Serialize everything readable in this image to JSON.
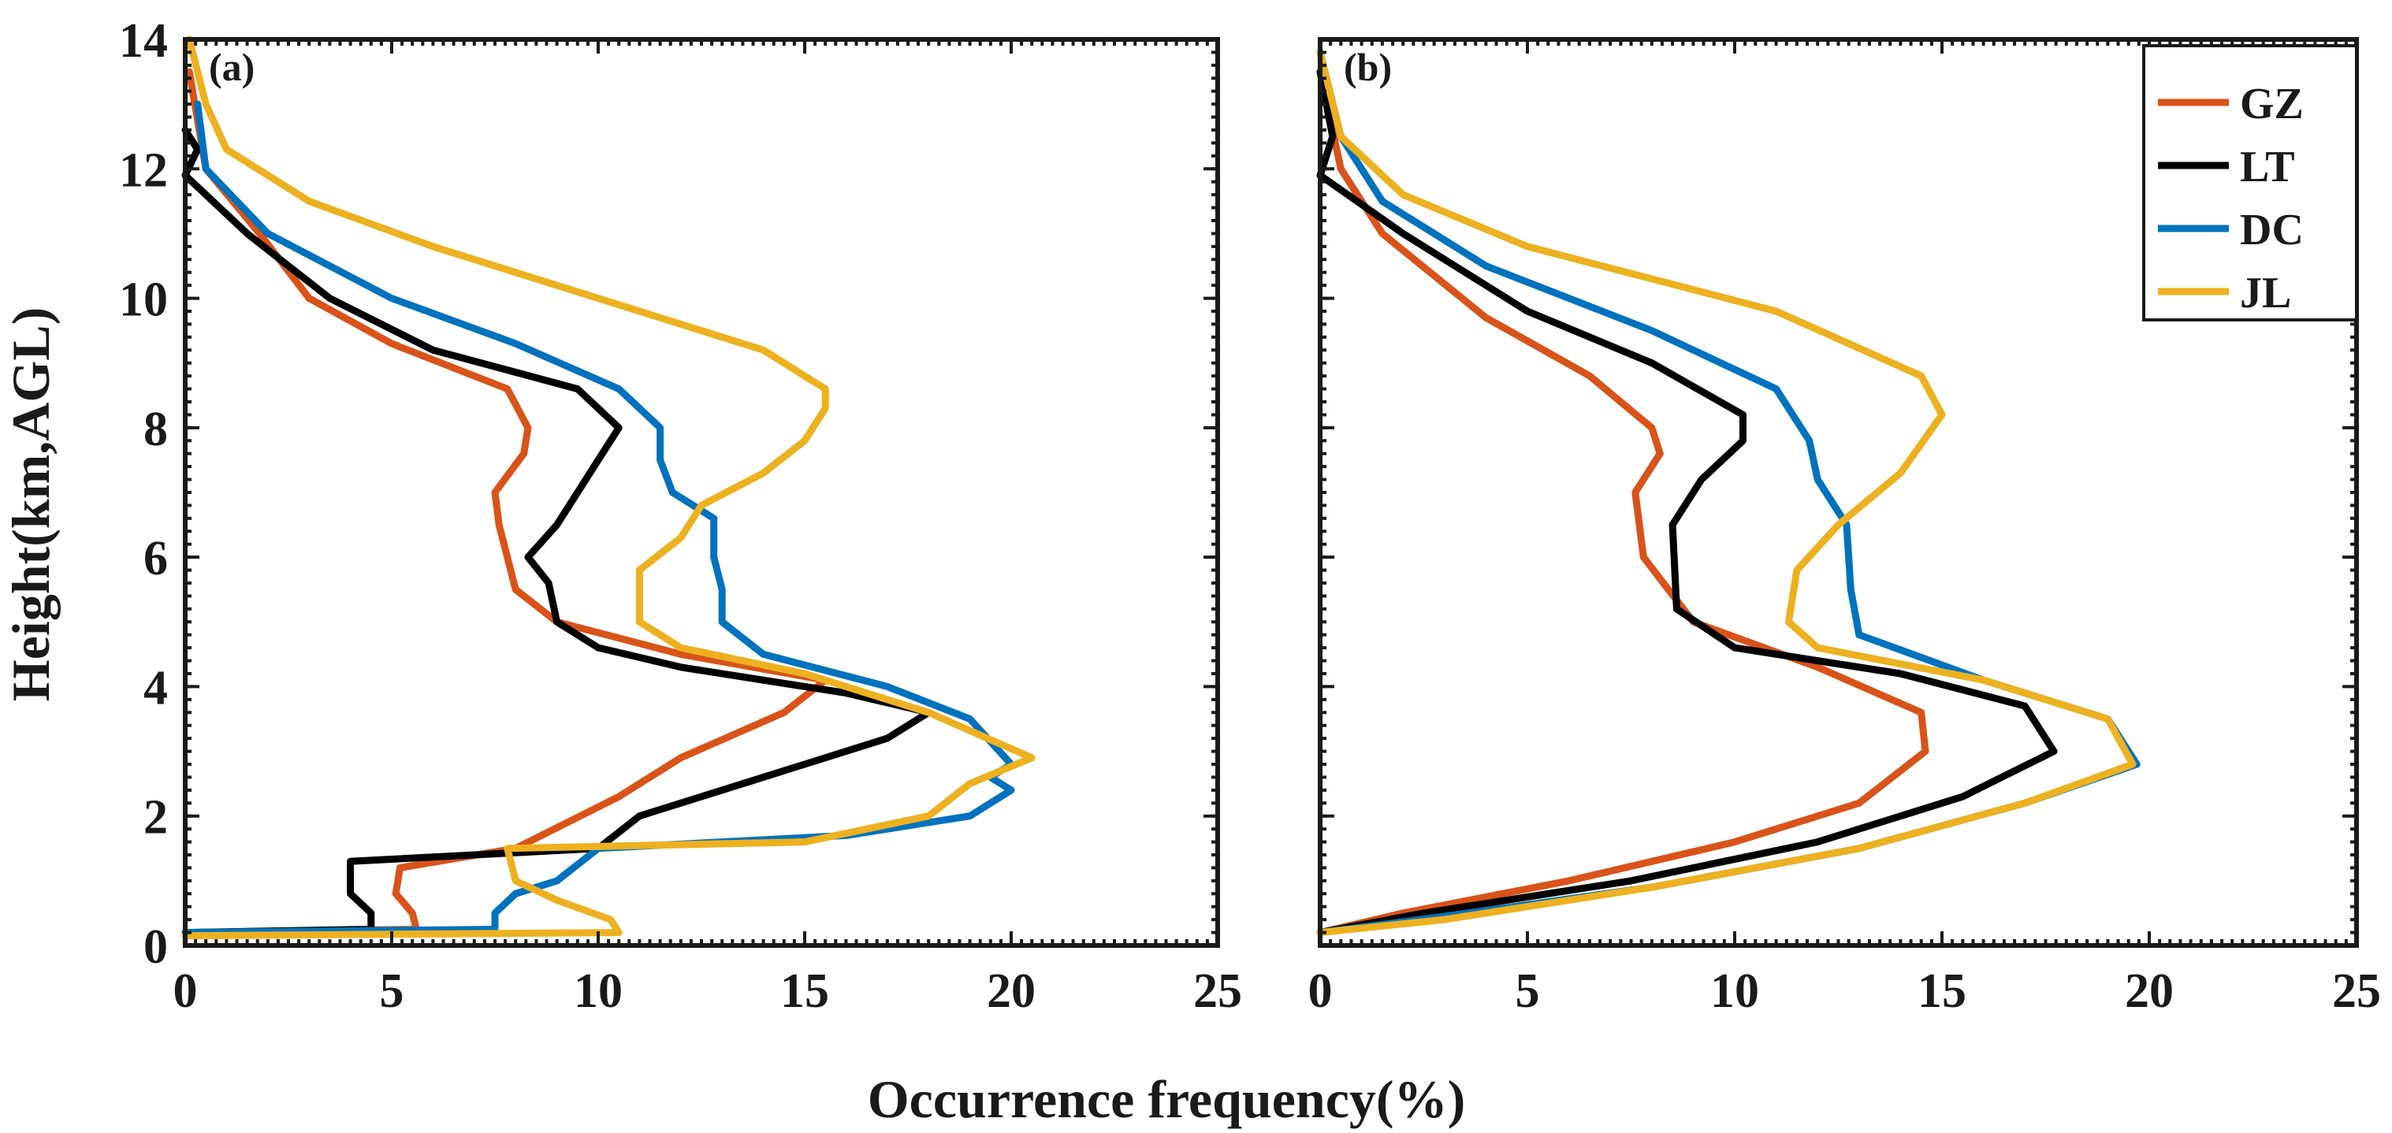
{
  "figure": {
    "xlabel": "Occurrence frequency(%)",
    "ylabel": "Height(km,AGL)"
  },
  "legend": {
    "location": "top-right of panel (b)",
    "entries": [
      {
        "name": "GZ",
        "color": "#D95319"
      },
      {
        "name": "LT",
        "color": "#000000"
      },
      {
        "name": "DC",
        "color": "#0072BD"
      },
      {
        "name": "JL",
        "color": "#EDB120"
      }
    ]
  },
  "chart_data": [
    {
      "type": "line",
      "panel_label": "(a)",
      "xlim": [
        0,
        25
      ],
      "ylim": [
        0,
        14
      ],
      "xticks": [
        0,
        5,
        10,
        15,
        20,
        25
      ],
      "yticks": [
        0,
        2,
        4,
        6,
        8,
        10,
        12,
        14
      ],
      "series": [
        {
          "name": "GZ",
          "color": "#D95319",
          "points": [
            [
              0,
              0.2
            ],
            [
              5.6,
              0.25
            ],
            [
              5.5,
              0.5
            ],
            [
              5.1,
              0.8
            ],
            [
              5.2,
              1.2
            ],
            [
              8,
              1.5
            ],
            [
              10.5,
              2.3
            ],
            [
              12,
              2.9
            ],
            [
              14.5,
              3.6
            ],
            [
              15.5,
              4.1
            ],
            [
              12,
              4.5
            ],
            [
              9,
              5
            ],
            [
              8,
              5.5
            ],
            [
              7.6,
              6.5
            ],
            [
              7.5,
              7
            ],
            [
              8.2,
              7.6
            ],
            [
              8.3,
              8
            ],
            [
              7.8,
              8.6
            ],
            [
              5,
              9.3
            ],
            [
              3,
              10
            ],
            [
              1.8,
              11
            ],
            [
              0.5,
              12
            ],
            [
              0.1,
              13.5
            ]
          ]
        },
        {
          "name": "LT",
          "color": "#000000",
          "points": [
            [
              0,
              0.2
            ],
            [
              4.5,
              0.25
            ],
            [
              4.5,
              0.5
            ],
            [
              4,
              0.8
            ],
            [
              4,
              1.3
            ],
            [
              10,
              1.5
            ],
            [
              11,
              2
            ],
            [
              14,
              2.6
            ],
            [
              17,
              3.2
            ],
            [
              18,
              3.6
            ],
            [
              16,
              3.9
            ],
            [
              12,
              4.3
            ],
            [
              10,
              4.6
            ],
            [
              9,
              5
            ],
            [
              8.8,
              5.6
            ],
            [
              8.3,
              6
            ],
            [
              9,
              6.5
            ],
            [
              9.5,
              7
            ],
            [
              10,
              7.5
            ],
            [
              10.5,
              8
            ],
            [
              9.5,
              8.6
            ],
            [
              6,
              9.2
            ],
            [
              3.5,
              10
            ],
            [
              1.5,
              11
            ],
            [
              0,
              11.9
            ],
            [
              0.3,
              12.3
            ],
            [
              0,
              12.6
            ]
          ]
        },
        {
          "name": "DC",
          "color": "#0072BD",
          "points": [
            [
              0,
              0.2
            ],
            [
              7.5,
              0.25
            ],
            [
              7.5,
              0.5
            ],
            [
              8,
              0.8
            ],
            [
              9,
              1
            ],
            [
              10,
              1.5
            ],
            [
              16,
              1.7
            ],
            [
              19,
              2
            ],
            [
              20,
              2.4
            ],
            [
              19.5,
              2.6
            ],
            [
              20,
              2.8
            ],
            [
              19,
              3.5
            ],
            [
              17,
              4
            ],
            [
              14,
              4.5
            ],
            [
              13,
              5
            ],
            [
              13,
              5.5
            ],
            [
              12.8,
              6
            ],
            [
              12.8,
              6.6
            ],
            [
              11.8,
              7
            ],
            [
              11.5,
              7.5
            ],
            [
              11.5,
              8
            ],
            [
              10.5,
              8.6
            ],
            [
              8,
              9.3
            ],
            [
              5,
              10
            ],
            [
              2,
              11
            ],
            [
              0.5,
              12
            ],
            [
              0.3,
              13
            ]
          ]
        },
        {
          "name": "JL",
          "color": "#EDB120",
          "points": [
            [
              0,
              0.15
            ],
            [
              10.5,
              0.2
            ],
            [
              10.3,
              0.4
            ],
            [
              9,
              0.7
            ],
            [
              8,
              1
            ],
            [
              7.8,
              1.5
            ],
            [
              15,
              1.6
            ],
            [
              18,
              2
            ],
            [
              19,
              2.5
            ],
            [
              20.5,
              2.9
            ],
            [
              18,
              3.6
            ],
            [
              15,
              4.2
            ],
            [
              12,
              4.6
            ],
            [
              11,
              5
            ],
            [
              11,
              5.8
            ],
            [
              12,
              6.3
            ],
            [
              12.5,
              6.8
            ],
            [
              14,
              7.3
            ],
            [
              15,
              7.8
            ],
            [
              15.5,
              8.3
            ],
            [
              15.5,
              8.6
            ],
            [
              14,
              9.2
            ],
            [
              10,
              10
            ],
            [
              6,
              10.8
            ],
            [
              3,
              11.5
            ],
            [
              1,
              12.3
            ],
            [
              0.5,
              13
            ],
            [
              0.1,
              14
            ]
          ]
        }
      ]
    },
    {
      "type": "line",
      "panel_label": "(b)",
      "xlim": [
        0,
        25
      ],
      "ylim": [
        0,
        14
      ],
      "xticks": [
        0,
        5,
        10,
        15,
        20,
        25
      ],
      "yticks": [
        0,
        2,
        4,
        6,
        8,
        10,
        12,
        14
      ],
      "series": [
        {
          "name": "GZ",
          "color": "#D95319",
          "points": [
            [
              0,
              0.2
            ],
            [
              2,
              0.5
            ],
            [
              6,
              1
            ],
            [
              10,
              1.6
            ],
            [
              13,
              2.2
            ],
            [
              14.6,
              3
            ],
            [
              14.5,
              3.6
            ],
            [
              12,
              4.3
            ],
            [
              9,
              5
            ],
            [
              7.8,
              6
            ],
            [
              7.6,
              7
            ],
            [
              8.2,
              7.6
            ],
            [
              8,
              8
            ],
            [
              6.5,
              8.8
            ],
            [
              4,
              9.7
            ],
            [
              1.5,
              11
            ],
            [
              0.5,
              12
            ],
            [
              0,
              13.5
            ]
          ]
        },
        {
          "name": "LT",
          "color": "#000000",
          "points": [
            [
              0,
              0.2
            ],
            [
              2.5,
              0.5
            ],
            [
              7.5,
              1
            ],
            [
              12,
              1.6
            ],
            [
              15.5,
              2.3
            ],
            [
              17.7,
              3
            ],
            [
              17,
              3.7
            ],
            [
              14,
              4.2
            ],
            [
              10,
              4.6
            ],
            [
              8.6,
              5.2
            ],
            [
              8.5,
              6.5
            ],
            [
              9.2,
              7.2
            ],
            [
              10.2,
              7.8
            ],
            [
              10.2,
              8.2
            ],
            [
              8,
              9
            ],
            [
              5,
              9.8
            ],
            [
              2,
              11
            ],
            [
              0,
              11.9
            ],
            [
              0.3,
              12.5
            ],
            [
              0,
              13.5
            ]
          ]
        },
        {
          "name": "DC",
          "color": "#0072BD",
          "points": [
            [
              0,
              0.2
            ],
            [
              3,
              0.45
            ],
            [
              8,
              0.9
            ],
            [
              13,
              1.5
            ],
            [
              17,
              2.2
            ],
            [
              19.7,
              2.8
            ],
            [
              19,
              3.5
            ],
            [
              16,
              4.1
            ],
            [
              13,
              4.8
            ],
            [
              12.8,
              5.5
            ],
            [
              12.7,
              6.5
            ],
            [
              12,
              7.2
            ],
            [
              11.8,
              7.8
            ],
            [
              11,
              8.6
            ],
            [
              8,
              9.5
            ],
            [
              4,
              10.5
            ],
            [
              1.5,
              11.5
            ],
            [
              0.5,
              12.5
            ],
            [
              0,
              13.8
            ]
          ]
        },
        {
          "name": "JL",
          "color": "#EDB120",
          "points": [
            [
              0,
              0.2
            ],
            [
              3,
              0.4
            ],
            [
              8,
              0.9
            ],
            [
              13,
              1.5
            ],
            [
              17,
              2.2
            ],
            [
              19.6,
              2.8
            ],
            [
              19,
              3.5
            ],
            [
              16,
              4.1
            ],
            [
              12,
              4.6
            ],
            [
              11.3,
              5
            ],
            [
              11.5,
              5.8
            ],
            [
              12.5,
              6.5
            ],
            [
              14,
              7.3
            ],
            [
              15,
              8.2
            ],
            [
              14.5,
              8.8
            ],
            [
              11,
              9.8
            ],
            [
              5,
              10.8
            ],
            [
              2,
              11.6
            ],
            [
              0.5,
              12.5
            ],
            [
              0,
              13.8
            ]
          ]
        }
      ]
    }
  ]
}
